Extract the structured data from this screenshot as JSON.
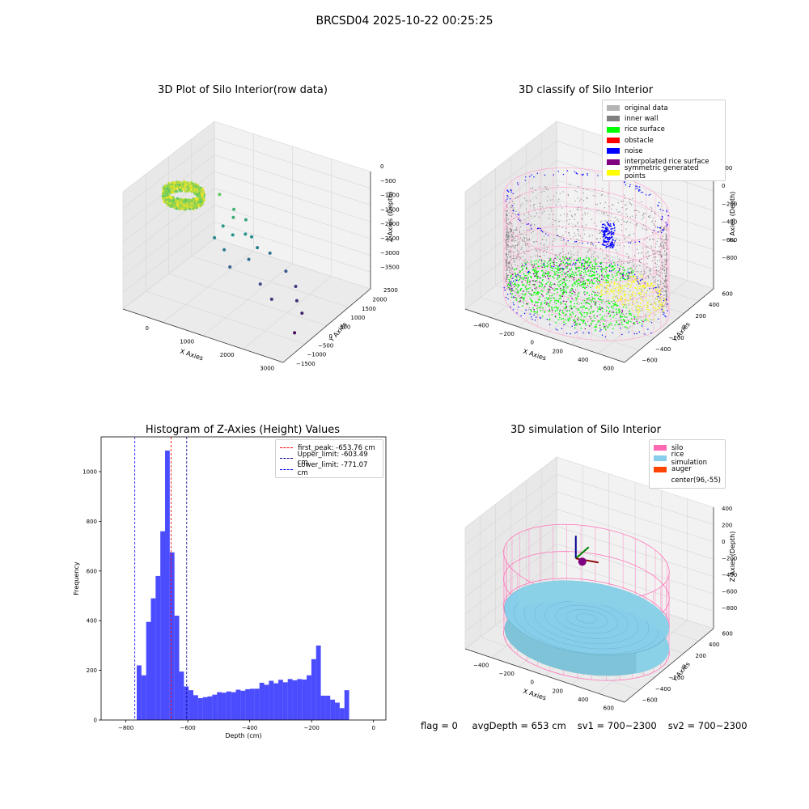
{
  "suptitle": "BRCSD04 2025-10-22 00:25:25",
  "footer": {
    "flag": "flag = 0",
    "avg": "avgDepth = 653 cm",
    "sv1": "sv1 = 700~2300",
    "sv2": "sv2 = 700~2300"
  },
  "chart_data": [
    {
      "type": "scatter",
      "subtype": "3d-scatter",
      "title": "3D Plot of Silo Interior(row data)",
      "xlabel": "X Axies",
      "ylabel": "Y Axies",
      "zlabel": "Z Axies (Depth)",
      "x_ticks": [
        "0",
        "1000",
        "2000",
        "3000"
      ],
      "y_ticks": [
        "−1500",
        "−1000",
        "−500",
        "0",
        "500",
        "1000",
        "1500",
        "2000",
        "2500"
      ],
      "z_ticks": [
        "0",
        "−500",
        "−1000",
        "−1500",
        "−2000",
        "−2500",
        "−3000",
        "−3500"
      ],
      "xlim": [
        -500,
        3500
      ],
      "ylim": [
        -1500,
        2500
      ],
      "zlim": [
        -3700,
        0
      ],
      "colormap": "viridis",
      "cluster": {
        "center_x": 100,
        "center_y": 100,
        "radius": 450,
        "z_range": [
          -900,
          -600
        ]
      },
      "outliers": [
        {
          "x": 600,
          "y": 800,
          "z": -900
        },
        {
          "x": 900,
          "y": 900,
          "z": -1300
        },
        {
          "x": 1000,
          "y": 700,
          "z": -1400
        },
        {
          "x": 1200,
          "y": 900,
          "z": -1500
        },
        {
          "x": 800,
          "y": 600,
          "z": -1700
        },
        {
          "x": 1300,
          "y": 700,
          "z": -1800
        },
        {
          "x": 1100,
          "y": 500,
          "z": -1800
        },
        {
          "x": 1400,
          "y": 800,
          "z": -1900
        },
        {
          "x": 700,
          "y": 400,
          "z": -2000
        },
        {
          "x": 1600,
          "y": 700,
          "z": -2100
        },
        {
          "x": 1000,
          "y": 300,
          "z": -2200
        },
        {
          "x": 1800,
          "y": 900,
          "z": -2300
        },
        {
          "x": 1500,
          "y": 500,
          "z": -2400
        },
        {
          "x": 1200,
          "y": 200,
          "z": -2600
        },
        {
          "x": 2200,
          "y": 900,
          "z": -2700
        },
        {
          "x": 1900,
          "y": 300,
          "z": -2900
        },
        {
          "x": 2500,
          "y": 800,
          "z": -3000
        },
        {
          "x": 2300,
          "y": 100,
          "z": -3100
        },
        {
          "x": 2700,
          "y": 500,
          "z": -3200
        },
        {
          "x": 3000,
          "y": 200,
          "z": -3300
        },
        {
          "x": 3100,
          "y": -300,
          "z": -3600
        }
      ]
    },
    {
      "type": "scatter",
      "subtype": "3d-scatter",
      "title": "3D classify of Silo Interior",
      "xlabel": "X Axies",
      "ylabel": "Y Axies",
      "zlabel": "Z Axies (Depth)",
      "x_ticks": [
        "−400",
        "−200",
        "0",
        "200",
        "400",
        "600"
      ],
      "y_ticks": [
        "−600",
        "−400",
        "−200",
        "0",
        "200",
        "400",
        "600"
      ],
      "z_ticks": [
        "200",
        "0",
        "−200",
        "−400",
        "−600",
        "−800"
      ],
      "xlim": [
        -500,
        700
      ],
      "ylim": [
        -700,
        700
      ],
      "zlim": [
        -900,
        300
      ],
      "legend": [
        {
          "label": "original data",
          "color": "#b4b4b4"
        },
        {
          "label": "inner wall",
          "color": "#808080"
        },
        {
          "label": "rice surface",
          "color": "#00ff00"
        },
        {
          "label": "obstacle",
          "color": "#ff0000"
        },
        {
          "label": "noise",
          "color": "#0000ff"
        },
        {
          "label": "interpolated rice surface",
          "color": "#800080"
        },
        {
          "label": "symmetric generated points",
          "color": "#ffff00"
        }
      ],
      "silo": {
        "center_x": 96,
        "center_y": -55,
        "radius": 560,
        "z_top": 100,
        "z_bottom": -900
      },
      "rice_surface_z": -654
    },
    {
      "type": "bar",
      "subtype": "histogram",
      "title": "Histogram of Z-Axies (Height) Values",
      "xlabel": "Depth (cm)",
      "ylabel": "Frequency",
      "xlim": [
        -880,
        40
      ],
      "ylim": [
        0,
        1140
      ],
      "x_ticks": [
        -800,
        -600,
        -400,
        -200,
        0
      ],
      "x_tick_labels": [
        "−800",
        "−600",
        "−400",
        "−200",
        "0"
      ],
      "y_ticks": [
        0,
        200,
        400,
        600,
        800,
        1000
      ],
      "bin_start": -765,
      "bin_width": 15.25,
      "color": "#0000ff",
      "values": [
        220,
        180,
        395,
        490,
        580,
        760,
        1085,
        675,
        420,
        195,
        135,
        120,
        100,
        88,
        92,
        95,
        102,
        112,
        110,
        115,
        112,
        122,
        118,
        124,
        126,
        126,
        150,
        142,
        158,
        148,
        162,
        152,
        165,
        160,
        165,
        163,
        180,
        245,
        300,
        98,
        98,
        82,
        70,
        48,
        120
      ],
      "lines": [
        {
          "label": "first_peak: -653.76 cm",
          "x": -653.76,
          "color": "#ff0000"
        },
        {
          "label": "Upper_limit: -603.49 cm",
          "x": -603.49,
          "color": "#00008b"
        },
        {
          "label": "Lower_limit: -771.07 cm",
          "x": -771.07,
          "color": "#0000ff"
        }
      ]
    },
    {
      "type": "scatter",
      "subtype": "3d-surface",
      "title": "3D simulation of Silo Interior",
      "xlabel": "X Axies",
      "ylabel": "Y Axies",
      "zlabel": "Z Axies (Depth)",
      "x_ticks": [
        "−400",
        "−200",
        "0",
        "200",
        "400",
        "600"
      ],
      "y_ticks": [
        "−600",
        "−400",
        "−200",
        "0",
        "200",
        "400",
        "600"
      ],
      "z_ticks": [
        "400",
        "200",
        "0",
        "−200",
        "−400",
        "−600",
        "−800"
      ],
      "xlim": [
        -500,
        700
      ],
      "ylim": [
        -700,
        700
      ],
      "zlim": [
        -900,
        450
      ],
      "legend": [
        {
          "label": "silo",
          "color": "#ff69b4"
        },
        {
          "label": "rice simulation",
          "color": "#87ceeb"
        },
        {
          "label": "auger",
          "color": "#ff4500"
        },
        {
          "label": "center(96,-55)",
          "color": "#ffffff"
        }
      ],
      "rice_surface_z": -653
    }
  ]
}
